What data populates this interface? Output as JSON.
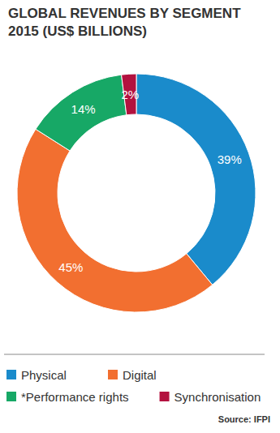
{
  "chart_data": {
    "type": "donut",
    "title": "GLOBAL REVENUES BY SEGMENT 2015 (US$ BILLIONS)",
    "categories": [
      "Physical",
      "Digital",
      "*Performance rights",
      "Synchronisation"
    ],
    "values": [
      39,
      45,
      14,
      2
    ],
    "value_labels": [
      "39%",
      "45%",
      "14%",
      "2%"
    ],
    "colors": [
      "#1a8bcb",
      "#f26f30",
      "#17a866",
      "#b3123f"
    ],
    "data_labels": true,
    "legend": "bottom",
    "source": "Source: IFPI"
  }
}
